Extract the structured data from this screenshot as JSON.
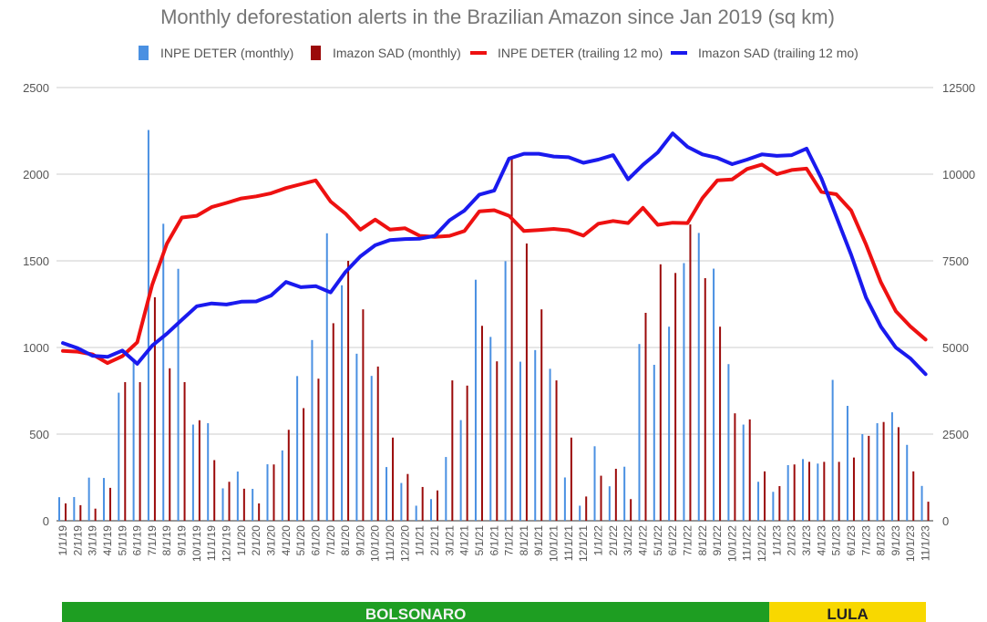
{
  "chart_data": {
    "type": "bar+line",
    "title": "Monthly deforestation alerts in the Brazilian Amazon since Jan 2019 (sq km)",
    "legend": {
      "position": "top",
      "entries": [
        "INPE DETER (monthly)",
        "Imazon SAD (monthly)",
        "INPE DETER (trailing 12 mo)",
        "Imazon SAD (trailing 12 mo)"
      ]
    },
    "left_axis": {
      "min": 0,
      "max": 2500,
      "ticks": [
        "0",
        "500",
        "1000",
        "1500",
        "2000",
        "2500"
      ]
    },
    "right_axis": {
      "min": 0,
      "max": 12500,
      "ticks": [
        "0",
        "2500",
        "5000",
        "7500",
        "10000",
        "12500"
      ]
    },
    "categories": [
      "1/1/19",
      "2/1/19",
      "3/1/19",
      "4/1/19",
      "5/1/19",
      "6/1/19",
      "7/1/19",
      "8/1/19",
      "9/1/19",
      "10/1/19",
      "11/1/19",
      "12/1/19",
      "1/1/20",
      "2/1/20",
      "3/1/20",
      "4/1/20",
      "5/1/20",
      "6/1/20",
      "7/1/20",
      "8/1/20",
      "9/1/20",
      "10/1/20",
      "11/1/20",
      "12/1/20",
      "1/1/21",
      "2/1/21",
      "3/1/21",
      "4/1/21",
      "5/1/21",
      "6/1/21",
      "7/1/21",
      "8/1/21",
      "9/1/21",
      "10/1/21",
      "11/1/21",
      "12/1/21",
      "1/1/22",
      "2/1/22",
      "3/1/22",
      "4/1/22",
      "5/1/22",
      "6/1/22",
      "7/1/22",
      "8/1/22",
      "9/1/22",
      "10/1/22",
      "11/1/22",
      "12/1/22",
      "1/1/23",
      "2/1/23",
      "3/1/23",
      "4/1/23",
      "5/1/23",
      "6/1/23",
      "7/1/23",
      "8/1/23",
      "9/1/23",
      "10/1/23",
      "11/1/23"
    ],
    "series": [
      {
        "name": "INPE DETER (monthly)",
        "kind": "bar",
        "axis": "left",
        "color": "#4a90e2",
        "values": [
          136,
          137,
          249,
          247,
          739,
          935,
          2255,
          1714,
          1454,
          555,
          563,
          187,
          284,
          184,
          326,
          406,
          835,
          1043,
          1659,
          1359,
          964,
          836,
          310,
          218,
          87,
          125,
          368,
          581,
          1391,
          1061,
          1498,
          918,
          985,
          877,
          250,
          87,
          430,
          199,
          312,
          1020,
          900,
          1120,
          1487,
          1661,
          1455,
          904,
          555,
          225,
          167,
          321,
          356,
          330,
          813,
          663,
          500,
          563,
          626,
          438,
          201
        ]
      },
      {
        "name": "Imazon SAD (monthly)",
        "kind": "bar",
        "axis": "left",
        "color": "#9b0a0a",
        "values": [
          100,
          90,
          70,
          190,
          800,
          800,
          1290,
          880,
          800,
          580,
          350,
          225,
          185,
          100,
          325,
          525,
          650,
          820,
          1140,
          1500,
          1220,
          890,
          480,
          270,
          195,
          175,
          810,
          780,
          1125,
          920,
          2100,
          1600,
          1220,
          810,
          480,
          140,
          260,
          300,
          125,
          1200,
          1480,
          1430,
          1710,
          1400,
          1120,
          620,
          585,
          285,
          200,
          325,
          340,
          340,
          340,
          365,
          490,
          570,
          540,
          285,
          110
        ]
      },
      {
        "name": "INPE DETER (trailing 12 mo)",
        "kind": "line",
        "axis": "right",
        "color": "#ee1111",
        "values": [
          4900,
          4880,
          4800,
          4550,
          4750,
          5150,
          6800,
          8000,
          8750,
          8800,
          9050,
          9170,
          9300,
          9360,
          9450,
          9600,
          9710,
          9820,
          9210,
          8860,
          8400,
          8690,
          8400,
          8440,
          8220,
          8190,
          8220,
          8360,
          8930,
          8960,
          8800,
          8360,
          8390,
          8420,
          8380,
          8230,
          8570,
          8650,
          8590,
          9030,
          8540,
          8600,
          8590,
          9310,
          9820,
          9850,
          10150,
          10280,
          10000,
          10120,
          10160,
          9490,
          9420,
          8950,
          7970,
          6880,
          6050,
          5600,
          5230
        ]
      },
      {
        "name": "Imazon SAD (trailing 12 mo)",
        "kind": "line",
        "axis": "right",
        "color": "#1a1aee",
        "values": [
          5130,
          4980,
          4760,
          4730,
          4910,
          4530,
          5050,
          5400,
          5800,
          6190,
          6270,
          6240,
          6320,
          6330,
          6500,
          6890,
          6740,
          6770,
          6590,
          7180,
          7630,
          7950,
          8100,
          8130,
          8140,
          8220,
          8670,
          8950,
          9410,
          9530,
          10450,
          10590,
          10590,
          10510,
          10490,
          10330,
          10420,
          10550,
          9850,
          10270,
          10630,
          11180,
          10790,
          10570,
          10470,
          10290,
          10420,
          10570,
          10530,
          10550,
          10740,
          9880,
          8780,
          7670,
          6440,
          5600,
          5000,
          4680,
          4230
        ]
      }
    ],
    "bands": [
      {
        "label": "BOLSONARO",
        "from": "1/1/19",
        "to": "12/1/22",
        "color": "#1e9e22",
        "text_color": "#f4f4f4"
      },
      {
        "label": "LULA",
        "from": "1/1/23",
        "to": "11/1/23",
        "color": "#f8d800",
        "text_color": "#222222"
      }
    ]
  }
}
